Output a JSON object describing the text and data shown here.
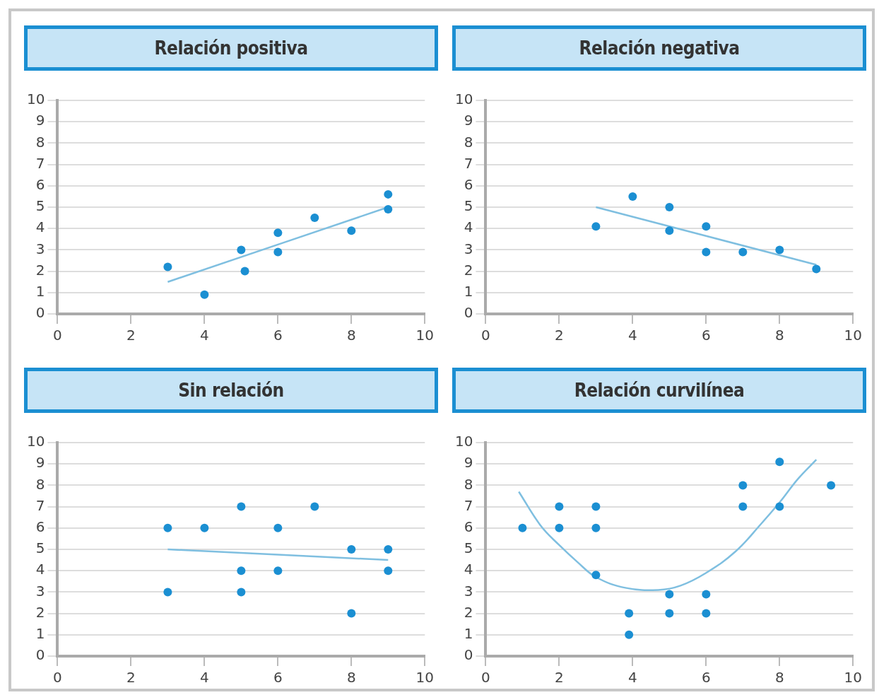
{
  "chart_data": [
    {
      "type": "scatter",
      "title": "Relación positiva",
      "xlim": [
        0,
        10
      ],
      "ylim": [
        0,
        10
      ],
      "xticks": [
        0,
        2,
        4,
        6,
        8,
        10
      ],
      "yticks": [
        0,
        1,
        2,
        3,
        4,
        5,
        6,
        7,
        8,
        9,
        10
      ],
      "grid": "y",
      "legend": false,
      "series": [
        {
          "marker": "circle",
          "color": "#1b8fd2",
          "x": [
            3,
            4,
            5,
            5.1,
            6,
            6,
            7,
            8,
            9,
            9
          ],
          "values": [
            2.2,
            0.9,
            3,
            2,
            3.8,
            2.9,
            4.5,
            3.9,
            5.6,
            4.9
          ]
        },
        {
          "type": "line",
          "marker": "none",
          "color": "#7fbfe0",
          "x": [
            3,
            9
          ],
          "values": [
            1.5,
            5
          ]
        }
      ]
    },
    {
      "type": "scatter",
      "title": "Relación negativa",
      "xlim": [
        0,
        10
      ],
      "ylim": [
        0,
        10
      ],
      "xticks": [
        0,
        2,
        4,
        6,
        8,
        10
      ],
      "yticks": [
        0,
        1,
        2,
        3,
        4,
        5,
        6,
        7,
        8,
        9,
        10
      ],
      "grid": "y",
      "legend": false,
      "series": [
        {
          "marker": "circle",
          "color": "#1b8fd2",
          "x": [
            3,
            4,
            5,
            5,
            6,
            6,
            7,
            8,
            9
          ],
          "values": [
            4.1,
            5.5,
            5,
            3.9,
            4.1,
            2.9,
            2.9,
            3,
            2.1
          ]
        },
        {
          "type": "line",
          "marker": "none",
          "color": "#7fbfe0",
          "x": [
            3,
            9
          ],
          "values": [
            5,
            2.3
          ]
        }
      ]
    },
    {
      "type": "scatter",
      "title": "Sin relación",
      "xlim": [
        0,
        10
      ],
      "ylim": [
        0,
        10
      ],
      "xticks": [
        0,
        2,
        4,
        6,
        8,
        10
      ],
      "yticks": [
        0,
        1,
        2,
        3,
        4,
        5,
        6,
        7,
        8,
        9,
        10
      ],
      "grid": "y",
      "legend": false,
      "series": [
        {
          "marker": "circle",
          "color": "#1b8fd2",
          "x": [
            3,
            4,
            5,
            7,
            6,
            8,
            9,
            5,
            6,
            9,
            3,
            5,
            8
          ],
          "values": [
            6,
            6,
            7,
            7,
            6,
            5,
            5,
            4,
            4,
            4,
            3,
            3,
            2
          ]
        },
        {
          "type": "line",
          "marker": "none",
          "color": "#7fbfe0",
          "x": [
            3,
            9
          ],
          "values": [
            5,
            4.5
          ]
        }
      ]
    },
    {
      "type": "scatter",
      "title": "Relación curvilínea",
      "xlim": [
        0,
        10
      ],
      "ylim": [
        0,
        10
      ],
      "xticks": [
        0,
        2,
        4,
        6,
        8,
        10
      ],
      "yticks": [
        0,
        1,
        2,
        3,
        4,
        5,
        6,
        7,
        8,
        9,
        10
      ],
      "grid": "y",
      "legend": false,
      "series": [
        {
          "marker": "circle",
          "color": "#1b8fd2",
          "x": [
            1,
            2,
            2,
            3,
            3,
            3,
            3.9,
            3.9,
            5,
            5,
            6,
            6,
            7,
            7,
            8,
            8,
            9.4
          ],
          "values": [
            6,
            7,
            6,
            7,
            6,
            3.8,
            2,
            1,
            2.9,
            2,
            2.9,
            2,
            8,
            7,
            9.1,
            7,
            8
          ]
        },
        {
          "type": "line",
          "marker": "none",
          "color": "#7fbfe0",
          "x": [
            0.9,
            1.5,
            2,
            2.5,
            3,
            3.8,
            4.7,
            5.3,
            6,
            6.8,
            7.5,
            8,
            8.5,
            9
          ],
          "values": [
            7.7,
            6.1,
            5.2,
            4.4,
            3.7,
            3.2,
            3.1,
            3.3,
            3.9,
            4.9,
            6.2,
            7.2,
            8.3,
            9.2
          ]
        }
      ]
    }
  ]
}
